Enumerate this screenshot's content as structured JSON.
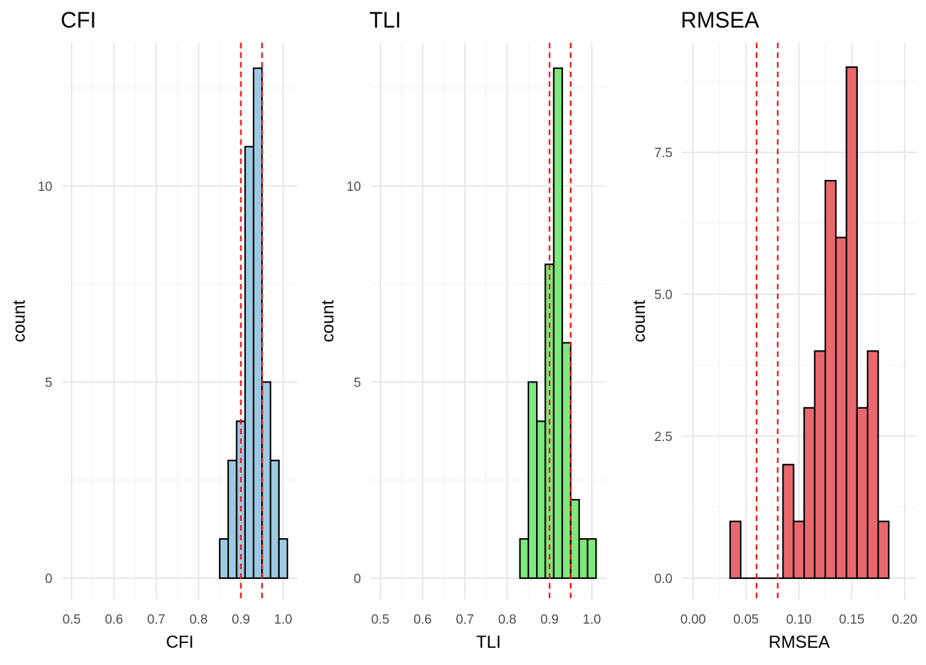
{
  "chart_data": [
    {
      "type": "bar",
      "title": "CFI",
      "xlabel": "CFI",
      "ylabel": "count",
      "fill": "#9ecae1",
      "outline": "#000000",
      "binwidth": 0.02,
      "bins": [
        [
          0.85,
          0.87,
          1
        ],
        [
          0.87,
          0.89,
          3
        ],
        [
          0.89,
          0.91,
          4
        ],
        [
          0.91,
          0.93,
          11
        ],
        [
          0.93,
          0.95,
          13
        ],
        [
          0.95,
          0.97,
          5
        ],
        [
          0.97,
          0.99,
          3
        ],
        [
          0.99,
          1.01,
          1
        ]
      ],
      "vlines": [
        0.9,
        0.95
      ],
      "vline_color": "#ff0000",
      "xlim": [
        0.4772,
        1.0342
      ],
      "ylim": [
        -0.545,
        13.65
      ],
      "xticks": [
        0.5,
        0.6,
        0.7,
        0.8,
        0.9,
        1.0
      ],
      "xtick_labels": [
        "0.5",
        "0.6",
        "0.7",
        "0.8",
        "0.9",
        "1.0"
      ],
      "xminor": [
        0.55,
        0.65,
        0.75,
        0.85,
        0.95
      ],
      "yticks": [
        0,
        5,
        10
      ],
      "ytick_labels": [
        "0",
        "5",
        "10"
      ],
      "yminor": [
        2.5,
        7.5,
        12.5
      ],
      "grid": true
    },
    {
      "type": "bar",
      "title": "TLI",
      "xlabel": "TLI",
      "ylabel": "count",
      "fill": "#7ee87e",
      "outline": "#000000",
      "binwidth": 0.02,
      "bins": [
        [
          0.83,
          0.85,
          1
        ],
        [
          0.85,
          0.87,
          5
        ],
        [
          0.87,
          0.89,
          4
        ],
        [
          0.89,
          0.91,
          8
        ],
        [
          0.91,
          0.93,
          13
        ],
        [
          0.93,
          0.95,
          6
        ],
        [
          0.95,
          0.97,
          2
        ],
        [
          0.97,
          0.99,
          1
        ],
        [
          0.99,
          1.01,
          1
        ]
      ],
      "vlines": [
        0.9,
        0.95
      ],
      "vline_color": "#ff0000",
      "xlim": [
        0.4772,
        1.0342
      ],
      "ylim": [
        -0.545,
        13.65
      ],
      "xticks": [
        0.5,
        0.6,
        0.7,
        0.8,
        0.9,
        1.0
      ],
      "xtick_labels": [
        "0.5",
        "0.6",
        "0.7",
        "0.8",
        "0.9",
        "1.0"
      ],
      "xminor": [
        0.55,
        0.65,
        0.75,
        0.85,
        0.95
      ],
      "yticks": [
        0,
        5,
        10
      ],
      "ytick_labels": [
        "0",
        "5",
        "10"
      ],
      "yminor": [
        2.5,
        7.5,
        12.5
      ],
      "grid": true
    },
    {
      "type": "bar",
      "title": "RMSEA",
      "xlabel": "RMSEA",
      "ylabel": "count",
      "fill": "#e8686e",
      "outline": "#000000",
      "binwidth": 0.01,
      "bins": [
        [
          0.035,
          0.045,
          1
        ],
        [
          0.045,
          0.055,
          0
        ],
        [
          0.055,
          0.065,
          0
        ],
        [
          0.065,
          0.075,
          0
        ],
        [
          0.075,
          0.085,
          0
        ],
        [
          0.085,
          0.095,
          2
        ],
        [
          0.095,
          0.105,
          1
        ],
        [
          0.105,
          0.115,
          3
        ],
        [
          0.115,
          0.125,
          4
        ],
        [
          0.125,
          0.135,
          7
        ],
        [
          0.135,
          0.145,
          6
        ],
        [
          0.145,
          0.155,
          9
        ],
        [
          0.155,
          0.165,
          3
        ],
        [
          0.165,
          0.175,
          4
        ],
        [
          0.175,
          0.185,
          1
        ]
      ],
      "vlines": [
        0.06,
        0.08
      ],
      "vline_color": "#ff0000",
      "xlim": [
        -0.0104,
        0.2111
      ],
      "ylim": [
        -0.376,
        9.43
      ],
      "xticks": [
        0,
        0.05,
        0.1,
        0.15,
        0.2
      ],
      "xtick_labels": [
        "0.00",
        "0.05",
        "0.10",
        "0.15",
        "0.20"
      ],
      "xminor": [
        0.025,
        0.075,
        0.125,
        0.175
      ],
      "yticks": [
        0,
        2.5,
        5,
        7.5
      ],
      "ytick_labels": [
        "0.0",
        "2.5",
        "5.0",
        "7.5"
      ],
      "yminor": [
        1.25,
        3.75,
        6.25,
        8.75
      ],
      "grid": true
    }
  ]
}
